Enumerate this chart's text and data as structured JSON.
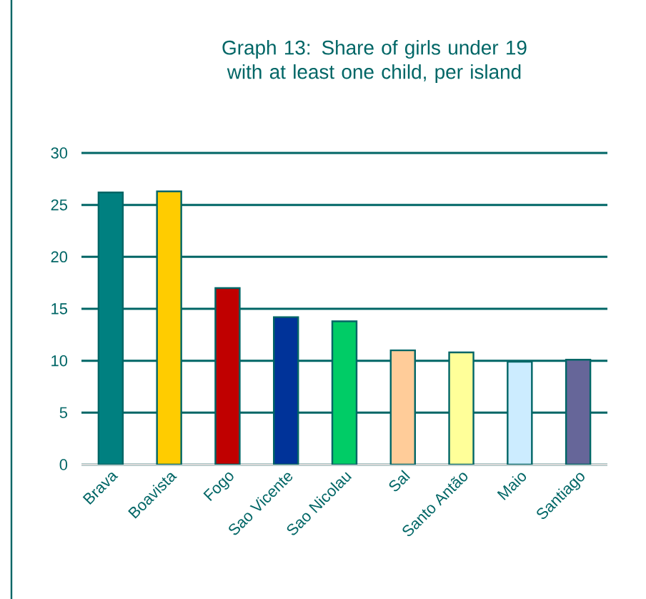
{
  "chart_data": {
    "type": "bar",
    "title": "Graph 13: Share of girls under 19 with at least one child, per island",
    "categories": [
      "Brava",
      "Boavista",
      "Fogo",
      "Sao Vicente",
      "Sao Nicolau",
      "Sal",
      "Santo Antão",
      "Maio",
      "Santiago"
    ],
    "values": [
      26.2,
      26.3,
      17.0,
      14.2,
      13.8,
      11.0,
      10.8,
      9.9,
      10.1
    ],
    "colors": [
      "#008080",
      "#ffcc00",
      "#c00000",
      "#003399",
      "#00cc66",
      "#ffcc99",
      "#ffff99",
      "#ccecff",
      "#666699"
    ],
    "ylim": [
      0,
      30
    ],
    "yticks": [
      0,
      5,
      10,
      15,
      20,
      25,
      30
    ],
    "grid": "y"
  }
}
